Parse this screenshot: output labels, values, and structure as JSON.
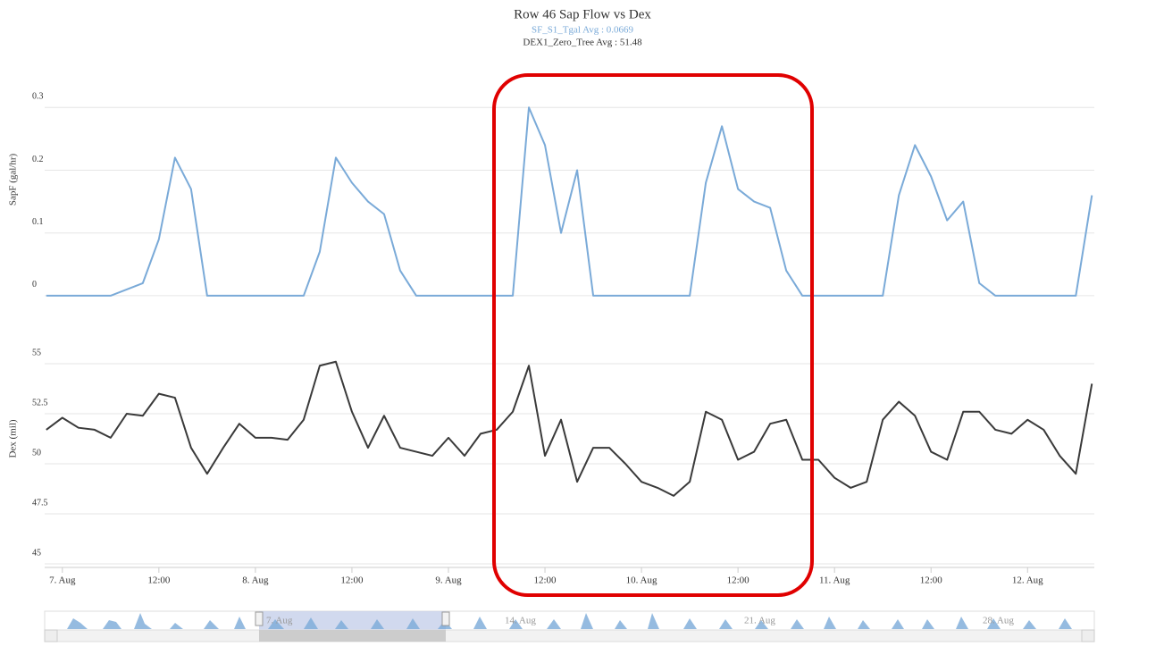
{
  "chart_data": [
    {
      "type": "line",
      "title": "Row 46 Sap Flow vs Dex",
      "subtitle": [
        "SF_S1_Tgal Avg : 0.0669",
        "DEX1_Zero_Tree Avg : 51.48"
      ],
      "y_label": "SapF (gal/hr)",
      "x": [
        -2,
        0,
        2,
        4,
        6,
        8,
        10,
        12,
        14,
        16,
        18,
        20,
        22,
        24,
        26,
        28,
        30,
        32,
        34,
        36,
        38,
        40,
        42,
        44,
        46,
        48,
        50,
        52,
        54,
        56,
        58,
        60,
        62,
        64,
        66,
        68,
        70,
        72,
        74,
        76,
        78,
        80,
        82,
        84,
        86,
        88,
        90,
        92,
        94,
        96,
        98,
        100,
        102,
        104,
        106,
        108,
        110,
        112,
        114,
        116,
        118,
        120,
        122,
        124,
        126,
        128
      ],
      "xlim": [
        -2.2,
        128.3
      ],
      "ylim": [
        -0.03,
        0.4
      ],
      "yticks": [
        0,
        0.1,
        0.2,
        0.3
      ],
      "grid": true,
      "series": [
        {
          "name": "SF_S1_Tgal",
          "color": "#7aaad8",
          "values": [
            0,
            0,
            0,
            0,
            0,
            0.01,
            0.02,
            0.09,
            0.22,
            0.17,
            0,
            0,
            0,
            0,
            0,
            0,
            0,
            0.07,
            0.22,
            0.18,
            0.15,
            0.13,
            0.04,
            0,
            0,
            0,
            0,
            0,
            0,
            0,
            0.3,
            0.24,
            0.1,
            0.2,
            0,
            0,
            0,
            0,
            0,
            0,
            0,
            0.18,
            0.27,
            0.17,
            0.15,
            0.14,
            0.04,
            0,
            0,
            0,
            0,
            0,
            0,
            0.16,
            0.24,
            0.19,
            0.12,
            0.15,
            0.02,
            0,
            0,
            0,
            0,
            0,
            0,
            0.16
          ]
        }
      ]
    },
    {
      "type": "line",
      "y_label": "Dex (mil)",
      "x": [
        -2,
        0,
        2,
        4,
        6,
        8,
        10,
        12,
        14,
        16,
        18,
        20,
        22,
        24,
        26,
        28,
        30,
        32,
        34,
        36,
        38,
        40,
        42,
        44,
        46,
        48,
        50,
        52,
        54,
        56,
        58,
        60,
        62,
        64,
        66,
        68,
        70,
        72,
        74,
        76,
        78,
        80,
        82,
        84,
        86,
        88,
        90,
        92,
        94,
        96,
        98,
        100,
        102,
        104,
        106,
        108,
        110,
        112,
        114,
        116,
        118,
        120,
        122,
        124,
        126,
        128
      ],
      "xlim": [
        -2.2,
        128.3
      ],
      "xticks": [
        {
          "value": 0,
          "label": "7. Aug"
        },
        {
          "value": 12,
          "label": "12:00"
        },
        {
          "value": 24,
          "label": "8. Aug"
        },
        {
          "value": 36,
          "label": "12:00"
        },
        {
          "value": 48,
          "label": "9. Aug"
        },
        {
          "value": 60,
          "label": "12:00"
        },
        {
          "value": 72,
          "label": "10. Aug"
        },
        {
          "value": 84,
          "label": "12:00"
        },
        {
          "value": 96,
          "label": "11. Aug"
        },
        {
          "value": 108,
          "label": "12:00"
        },
        {
          "value": 120,
          "label": "12. Aug"
        }
      ],
      "ylim": [
        45,
        57.5
      ],
      "yticks": [
        45,
        47.5,
        50,
        52.5,
        55
      ],
      "grid": true,
      "series": [
        {
          "name": "DEX1_Zero_Tree",
          "color": "#3a3a3a",
          "values": [
            51.7,
            52.3,
            51.8,
            51.7,
            51.3,
            52.5,
            52.4,
            53.5,
            53.3,
            50.8,
            49.5,
            50.8,
            52.0,
            51.3,
            51.3,
            51.2,
            52.2,
            54.9,
            55.1,
            52.6,
            50.8,
            52.4,
            50.8,
            50.6,
            50.4,
            51.3,
            50.4,
            51.5,
            51.7,
            52.6,
            54.9,
            50.4,
            52.2,
            49.1,
            50.8,
            50.8,
            50.0,
            49.1,
            48.8,
            48.4,
            49.1,
            52.6,
            52.2,
            50.2,
            50.6,
            52.0,
            52.2,
            50.2,
            50.2,
            49.3,
            48.8,
            49.1,
            52.2,
            53.1,
            52.4,
            50.6,
            50.2,
            52.6,
            52.6,
            51.7,
            51.5,
            52.2,
            51.7,
            50.4,
            49.5,
            54.0
          ]
        }
      ]
    }
  ],
  "navigator": {
    "labels": [
      "7. Aug",
      "14. Aug",
      "21. Aug",
      "28. Aug"
    ]
  }
}
